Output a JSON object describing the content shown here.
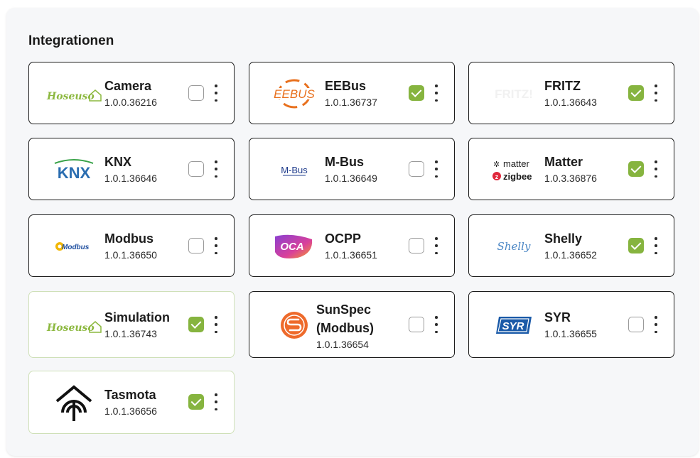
{
  "section": {
    "title": "Integrationen"
  },
  "colors": {
    "accent": "#86b43f",
    "active_border": "#cfe0b8",
    "inactive_border": "#1c1c1c"
  },
  "integrations": [
    {
      "name": "Camera",
      "version": "1.0.0.36216",
      "enabled": false,
      "logo": "hoseuso-logo",
      "logo_text": "Hoseuso"
    },
    {
      "name": "EEBus",
      "version": "1.0.1.36737",
      "enabled": true,
      "logo": "eebus-logo",
      "logo_text": "EEBUS"
    },
    {
      "name": "FRITZ",
      "version": "1.0.1.36643",
      "enabled": true,
      "logo": "fritz-logo",
      "logo_text": "FRITZ!"
    },
    {
      "name": "KNX",
      "version": "1.0.1.36646",
      "enabled": false,
      "logo": "knx-logo",
      "logo_text": "KNX"
    },
    {
      "name": "M-Bus",
      "version": "1.0.1.36649",
      "enabled": false,
      "logo": "mbus-logo",
      "logo_text": "M-Bus"
    },
    {
      "name": "Matter",
      "version": "1.0.3.36876",
      "enabled": true,
      "logo": "matter-zigbee-logo",
      "logo_text": "matter",
      "logo_text2": "zigbee"
    },
    {
      "name": "Modbus",
      "version": "1.0.1.36650",
      "enabled": false,
      "logo": "modbus-logo",
      "logo_text": "Modbus"
    },
    {
      "name": "OCPP",
      "version": "1.0.1.36651",
      "enabled": false,
      "logo": "oca-logo",
      "logo_text": "OCA"
    },
    {
      "name": "Shelly",
      "version": "1.0.1.36652",
      "enabled": true,
      "logo": "shelly-logo",
      "logo_text": "Shelly"
    },
    {
      "name": "Simulation",
      "version": "1.0.1.36743",
      "enabled": true,
      "logo": "hoseuso-logo",
      "logo_text": "Hoseuso"
    },
    {
      "name": "SunSpec (Modbus)",
      "version": "1.0.1.36654",
      "enabled": false,
      "logo": "sunspec-logo"
    },
    {
      "name": "SYR",
      "version": "1.0.1.36655",
      "enabled": false,
      "logo": "syr-logo",
      "logo_text": "SYR"
    },
    {
      "name": "Tasmota",
      "version": "1.0.1.36656",
      "enabled": true,
      "logo": "tasmota-logo"
    }
  ]
}
